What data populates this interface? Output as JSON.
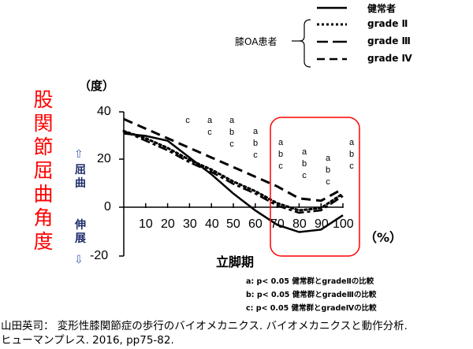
{
  "chart_data": {
    "type": "line",
    "title": "",
    "xlabel": "立脚期",
    "xunit": "（%）",
    "ylabel": "股関節屈曲角度",
    "yunit": "（度）",
    "y_direction_labels": {
      "up": "屈曲",
      "down": "伸展"
    },
    "xlim": [
      0,
      100
    ],
    "ylim": [
      -20,
      40
    ],
    "x_ticks": [
      10,
      20,
      30,
      40,
      50,
      60,
      70,
      80,
      90,
      100
    ],
    "y_ticks": [
      -20,
      0,
      20,
      40
    ],
    "x": [
      0,
      10,
      20,
      30,
      40,
      50,
      60,
      70,
      80,
      90,
      100
    ],
    "series": [
      {
        "name": "健常者",
        "style": "solid",
        "values": [
          31,
          30,
          28,
          21,
          14,
          6,
          -1,
          -7,
          -10,
          -9,
          -3
        ]
      },
      {
        "name": "grade Ⅱ",
        "style": "dotted",
        "values": [
          32,
          29,
          25,
          20,
          16,
          11,
          7,
          2,
          -1,
          0,
          6
        ]
      },
      {
        "name": "grade Ⅲ",
        "style": "long-short-dash",
        "values": [
          32,
          28,
          24,
          19,
          15,
          10,
          6,
          1,
          -2,
          -1,
          5
        ]
      },
      {
        "name": "grade Ⅳ",
        "style": "dashed",
        "values": [
          37,
          33,
          29,
          25,
          21,
          17,
          13,
          9,
          4,
          3,
          8
        ]
      }
    ],
    "significance_markers": [
      {
        "x": 30,
        "labels": [
          "c"
        ]
      },
      {
        "x": 40,
        "labels": [
          "a",
          "c"
        ]
      },
      {
        "x": 50,
        "labels": [
          "a",
          "b",
          "c"
        ]
      },
      {
        "x": 60,
        "labels": [
          "a",
          "b",
          "c"
        ]
      },
      {
        "x": 70,
        "labels": [
          "a",
          "b",
          "c"
        ]
      },
      {
        "x": 80,
        "labels": [
          "a",
          "b",
          "c"
        ]
      },
      {
        "x": 90,
        "labels": [
          "a",
          "b",
          "c"
        ]
      },
      {
        "x": 100,
        "labels": [
          "a",
          "b",
          "c"
        ]
      }
    ],
    "highlight_region": {
      "x_from": 67,
      "x_to": 100,
      "color": "#ff0000"
    },
    "legend": {
      "position": "top-right",
      "group_label": "膝OA患者",
      "entries": [
        "健常者",
        "grade Ⅱ",
        "grade Ⅲ",
        "grade Ⅳ"
      ]
    },
    "grid": false
  },
  "labels": {
    "y_unit": "（度）",
    "x_unit": "（%）",
    "x_title": "立脚期",
    "y_title_chars": [
      "股",
      "関",
      "節",
      "屈",
      "曲",
      "角",
      "度"
    ],
    "flexion": [
      "屈",
      "曲"
    ],
    "extension": [
      "伸",
      "展"
    ],
    "up_arrow": "⇧",
    "down_arrow": "⇩",
    "y_ticks": [
      "40",
      "20",
      "0",
      "-20"
    ],
    "x_ticks": [
      "10",
      "20",
      "30",
      "40",
      "50",
      "60",
      "70",
      "80",
      "90",
      "100"
    ]
  },
  "legend": {
    "group_label": "膝OA患者",
    "items": [
      "健常者",
      "grade Ⅱ",
      "grade Ⅲ",
      "grade Ⅳ"
    ]
  },
  "sig": {
    "m30": "c",
    "m40": "a\nc",
    "m50": "a\nb\nc",
    "m60": "a\nb\nc",
    "m70": "a\nb\nc",
    "m80": "a\nb\nc",
    "m90": "a\nb\nc",
    "m100": "a\nb\nc"
  },
  "notes": [
    "a: p< 0.05  健常群とgradeⅡの比較",
    "b: p< 0.05  健常群とgradeⅢの比較",
    "c: p< 0.05  健常群とgradeⅣの比較"
  ],
  "citation": {
    "line1": "山田英司： 変形性膝関節症の歩行のバイオメカニクス.  バイオメカニクスと動作分析.",
    "line2": "ヒューマンプレス.  2016,  pp75-82."
  },
  "colors": {
    "highlight": "#ff0000",
    "y_title": "#ff0000",
    "direction_text": "#1f2d6b",
    "lines": "#000000"
  }
}
